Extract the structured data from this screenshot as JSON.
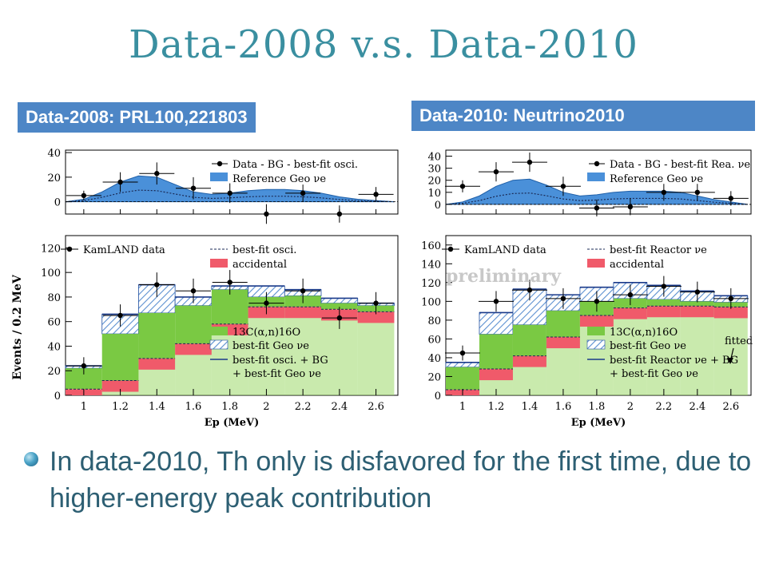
{
  "slide": {
    "title": "Data-2008 v.s. Data-2010",
    "label_left": "Data-2008:   PRL100,221803",
    "label_right": "Data-2010:   Neutrino2010",
    "bullet_text": "In data-2010, Th only is disfavored for the first time, due to higher-energy peak contribution"
  },
  "colors": {
    "title": "#3a8fa0",
    "label_bg": "#4d86c6",
    "geo_blue": "#4a90d9",
    "accidental": "#f05a6a",
    "c13": "#7ac943",
    "hatch": "#5a8fd0",
    "text": "#2d5f73"
  },
  "chart_data": [
    {
      "type": "bar",
      "title": "",
      "xlabel": "Ep (MeV)",
      "ylabel": "Events / 0.2 MeV",
      "x_ticks": [
        "1",
        "1.2",
        "1.4",
        "1.6",
        "1.8",
        "2",
        "2.2",
        "2.4",
        "2.6"
      ],
      "xlim": [
        0.9,
        2.72
      ],
      "bin_edges": [
        0.9,
        1.1,
        1.3,
        1.5,
        1.7,
        1.9,
        2.1,
        2.3,
        2.5,
        2.7
      ],
      "top_panel": {
        "ylim": [
          -10,
          42
        ],
        "y_ticks": [
          "0",
          "20",
          "40"
        ],
        "legend": [
          "Data - BG - best-fit osci.",
          "Reference Geo νe"
        ],
        "geo_curve_x": [
          0.9,
          1.0,
          1.1,
          1.2,
          1.3,
          1.4,
          1.5,
          1.6,
          1.7,
          1.8,
          1.9,
          2.0,
          2.1,
          2.2,
          2.3,
          2.4,
          2.5,
          2.6,
          2.7
        ],
        "geo_curve_y": [
          0,
          2,
          8,
          16,
          21,
          20,
          14,
          8,
          6,
          7,
          9,
          10,
          10,
          9,
          7,
          4,
          2,
          1,
          0
        ],
        "data_x": [
          1.0,
          1.2,
          1.4,
          1.6,
          1.8,
          2.0,
          2.2,
          2.4,
          2.6
        ],
        "data_y": [
          5,
          16,
          23,
          11,
          7,
          -10,
          7,
          -10,
          6
        ],
        "data_err": [
          4,
          8,
          9,
          9,
          8,
          8,
          7,
          7,
          6
        ]
      },
      "bottom_panel": {
        "ylim": [
          0,
          130
        ],
        "y_ticks": [
          "0",
          "20",
          "40",
          "60",
          "80",
          "100",
          "120"
        ],
        "legend_top": [
          "KamLAND data",
          "best-fit osci.",
          "accidental"
        ],
        "legend_bottom": [
          "13C(α,n)16O",
          "best-fit Geo νe",
          "best-fit osci. + BG",
          "+ best-fit Geo νe"
        ],
        "accidental": [
          5,
          12,
          30,
          42,
          58,
          72,
          72,
          70,
          68
        ],
        "c13": [
          22,
          50,
          67,
          73,
          86,
          80,
          81,
          75,
          73
        ],
        "total": [
          24,
          66,
          90,
          80,
          89,
          89,
          86,
          79,
          75
        ],
        "data_x": [
          1.0,
          1.2,
          1.4,
          1.6,
          1.8,
          2.0,
          2.2,
          2.4,
          2.6
        ],
        "data_y": [
          24,
          65,
          90,
          85,
          92,
          75,
          85,
          63,
          75
        ],
        "data_err": [
          7,
          9,
          10,
          10,
          10,
          9,
          10,
          9,
          9
        ]
      }
    },
    {
      "type": "bar",
      "title": "",
      "xlabel": "Ep (MeV)",
      "ylabel": "",
      "annotations": [
        "preliminary",
        "fitted"
      ],
      "x_ticks": [
        "1",
        "1.2",
        "1.4",
        "1.6",
        "1.8",
        "2",
        "2.2",
        "2.4",
        "2.6"
      ],
      "xlim": [
        0.9,
        2.72
      ],
      "bin_edges": [
        0.9,
        1.1,
        1.3,
        1.5,
        1.7,
        1.9,
        2.1,
        2.3,
        2.5,
        2.7
      ],
      "top_panel": {
        "ylim": [
          -8,
          45
        ],
        "y_ticks": [
          "0",
          "10",
          "20",
          "30",
          "40"
        ],
        "legend": [
          "Data - BG - best-fit Rea. νe",
          "Reference Geo νe"
        ],
        "geo_curve_x": [
          0.9,
          1.0,
          1.1,
          1.2,
          1.3,
          1.4,
          1.5,
          1.6,
          1.7,
          1.8,
          1.9,
          2.0,
          2.1,
          2.2,
          2.3,
          2.4,
          2.5,
          2.6,
          2.7
        ],
        "geo_curve_y": [
          0,
          2,
          7,
          15,
          20,
          21,
          16,
          10,
          7,
          8,
          10,
          11,
          11,
          11,
          10,
          7,
          4,
          2,
          0
        ],
        "data_x": [
          1.0,
          1.2,
          1.4,
          1.6,
          1.8,
          2.0,
          2.2,
          2.4,
          2.6
        ],
        "data_y": [
          15,
          27,
          35,
          15,
          -3,
          -2,
          10,
          10,
          5
        ],
        "data_err": [
          5,
          8,
          8,
          8,
          7,
          7,
          7,
          7,
          6
        ]
      },
      "bottom_panel": {
        "ylim": [
          0,
          170
        ],
        "y_ticks": [
          "0",
          "20",
          "40",
          "60",
          "80",
          "100",
          "120",
          "140",
          "160"
        ],
        "legend_top": [
          "KamLAND data",
          "best-fit Reactor νe",
          "accidental"
        ],
        "legend_bottom": [
          "13C(α,n)16O",
          "best-fit Geo νe",
          "best-fit Reactor νe + BG",
          "+ best-fit Geo νe"
        ],
        "accidental": [
          6,
          28,
          42,
          62,
          85,
          93,
          95,
          95,
          94
        ],
        "c13": [
          30,
          65,
          75,
          90,
          100,
          103,
          102,
          100,
          99
        ],
        "total": [
          35,
          88,
          113,
          107,
          115,
          120,
          117,
          111,
          106
        ],
        "data_x": [
          1.0,
          1.2,
          1.4,
          1.6,
          1.8,
          2.0,
          2.2,
          2.4,
          2.6
        ],
        "data_y": [
          45,
          100,
          112,
          103,
          100,
          107,
          116,
          110,
          103
        ],
        "data_err": [
          8,
          11,
          11,
          11,
          11,
          11,
          11,
          11,
          11
        ]
      }
    }
  ]
}
